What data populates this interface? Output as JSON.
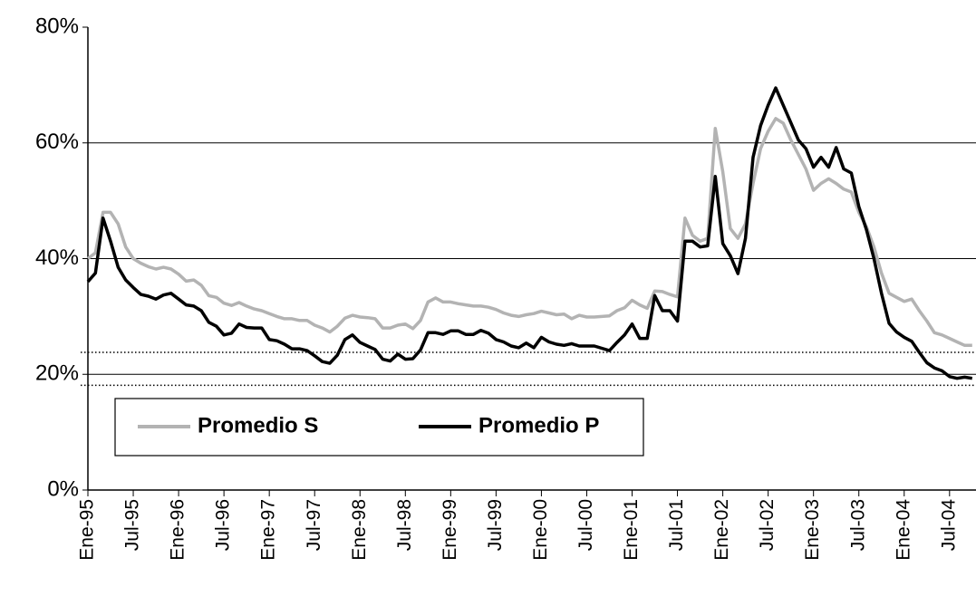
{
  "chart_data": {
    "type": "line",
    "categories": [
      "Ene-95",
      null,
      null,
      null,
      null,
      null,
      "Jul-95",
      null,
      null,
      null,
      null,
      null,
      "Ene-96",
      null,
      null,
      null,
      null,
      null,
      "Jul-96",
      null,
      null,
      null,
      null,
      null,
      "Ene-97",
      null,
      null,
      null,
      null,
      null,
      "Jul-97",
      null,
      null,
      null,
      null,
      null,
      "Ene-98",
      null,
      null,
      null,
      null,
      null,
      "Jul-98",
      null,
      null,
      null,
      null,
      null,
      "Ene-99",
      null,
      null,
      null,
      null,
      null,
      "Jul-99",
      null,
      null,
      null,
      null,
      null,
      "Ene-00",
      null,
      null,
      null,
      null,
      null,
      "Jul-00",
      null,
      null,
      null,
      null,
      null,
      "Ene-01",
      null,
      null,
      null,
      null,
      null,
      "Jul-01",
      null,
      null,
      null,
      null,
      null,
      "Ene-02",
      null,
      null,
      null,
      null,
      null,
      "Jul-02",
      null,
      null,
      null,
      null,
      null,
      "Ene-03",
      null,
      null,
      null,
      null,
      null,
      "Jul-03",
      null,
      null,
      null,
      null,
      null,
      "Ene-04",
      null,
      null,
      null,
      null,
      null,
      "Jul-04",
      null,
      null,
      null
    ],
    "series": [
      {
        "name": "Promedio S",
        "color": "#b3b3b3",
        "values": [
          40,
          41,
          48,
          48,
          46,
          42,
          40,
          39.2,
          38.6,
          38.2,
          38.5,
          38.2,
          37.3,
          36.1,
          36.3,
          35.4,
          33.6,
          33.3,
          32.3,
          31.9,
          32.4,
          31.8,
          31.3,
          31,
          30.5,
          30,
          29.6,
          29.6,
          29.3,
          29.3,
          28.5,
          28,
          27.3,
          28.3,
          29.7,
          30.2,
          29.9,
          29.8,
          29.6,
          28,
          28,
          28.5,
          28.7,
          27.9,
          29.3,
          32.5,
          33.2,
          32.5,
          32.5,
          32.2,
          32,
          31.8,
          31.8,
          31.6,
          31.2,
          30.6,
          30.2,
          30,
          30.3,
          30.5,
          30.9,
          30.6,
          30.3,
          30.4,
          29.6,
          30.2,
          29.9,
          29.9,
          30,
          30.1,
          31,
          31.5,
          32.8,
          32,
          31.4,
          34.4,
          34.3,
          33.8,
          33.4,
          47,
          44,
          43,
          43.5,
          62.5,
          55,
          45.2,
          43.5,
          46,
          53,
          59,
          62,
          64.2,
          63.4,
          60.5,
          58,
          55.5,
          51.8,
          53,
          53.8,
          53,
          52,
          51.5,
          48,
          45.5,
          42,
          37.5,
          34,
          33.3,
          32.6,
          33,
          31,
          29.2,
          27.2,
          26.8,
          26.2,
          25.6,
          25,
          25
        ]
      },
      {
        "name": "Promedio P",
        "color": "#000000",
        "values": [
          36,
          37.5,
          47,
          43,
          38.5,
          36.3,
          35,
          33.8,
          33.5,
          33,
          33.7,
          34,
          33,
          32,
          31.8,
          31,
          29,
          28.3,
          26.8,
          27.1,
          28.7,
          28.1,
          28,
          28,
          26,
          25.8,
          25.2,
          24.4,
          24.4,
          24.1,
          23.2,
          22.2,
          21.9,
          23.3,
          26,
          26.8,
          25.5,
          24.9,
          24.3,
          22.6,
          22.3,
          23.5,
          22.6,
          22.7,
          24.2,
          27.2,
          27.2,
          26.9,
          27.5,
          27.5,
          26.9,
          26.9,
          27.6,
          27.1,
          26,
          25.6,
          24.9,
          24.6,
          25.4,
          24.6,
          26.4,
          25.6,
          25.2,
          25,
          25.3,
          24.9,
          24.9,
          24.9,
          24.5,
          24.1,
          25.5,
          26.8,
          28.7,
          26.2,
          26.2,
          33.6,
          31,
          31,
          29.2,
          43,
          43,
          42,
          42.2,
          54.2,
          42.6,
          40.5,
          37.4,
          43.5,
          57.5,
          63,
          66.5,
          69.5,
          66.5,
          63.5,
          60.5,
          59,
          55.8,
          57.5,
          55.8,
          59.2,
          55.5,
          54.8,
          49,
          45,
          40,
          34,
          28.8,
          27.3,
          26.4,
          25.7,
          23.8,
          22,
          21.1,
          20.6,
          19.6,
          19.3,
          19.5,
          19.3
        ]
      }
    ],
    "ylim": [
      0,
      80
    ],
    "yticks": [
      {
        "value": 0,
        "label": "0%"
      },
      {
        "value": 20,
        "label": "20%"
      },
      {
        "value": 40,
        "label": "40%"
      },
      {
        "value": 60,
        "label": "60%"
      },
      {
        "value": 80,
        "label": "80%"
      }
    ],
    "grid": true,
    "reference_lines": [
      23.8,
      18.1
    ],
    "legend": "bottom-left"
  }
}
